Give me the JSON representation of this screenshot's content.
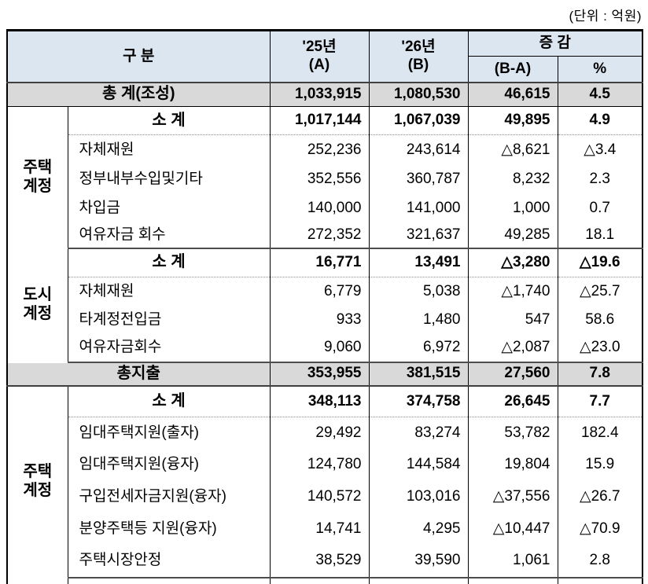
{
  "unit_label": "(단위 : 억원)",
  "colors": {
    "header_bg": "#dce6f1",
    "total_row_bg": "#d9d9d9",
    "border": "#000000",
    "thick_rule": "#404040",
    "dotted_rule": "#8c8c8c"
  },
  "header": {
    "category": "구    분",
    "y25": "'25년\n(A)",
    "y26": "'26년\n(B)",
    "change": "증  감",
    "diff": "(B-A)",
    "pct": "%"
  },
  "groups": [
    {
      "label": "주택\n계정"
    },
    {
      "label": "도시\n계정"
    },
    {
      "label": "주택\n계정"
    }
  ],
  "rows": [
    {
      "label": "총 계(조성)",
      "a": "1,033,915",
      "b": "1,080,530",
      "diff": "46,615",
      "pct": "4.5"
    },
    {
      "label": "소 계",
      "a": "1,017,144",
      "b": "1,067,039",
      "diff": "49,895",
      "pct": "4.9"
    },
    {
      "label": "자체재원",
      "a": "252,236",
      "b": "243,614",
      "diff": "△8,621",
      "pct": "△3.4"
    },
    {
      "label": "정부내부수입및기타",
      "a": "352,556",
      "b": "360,787",
      "diff": "8,232",
      "pct": "2.3"
    },
    {
      "label": "차입금",
      "a": "140,000",
      "b": "141,000",
      "diff": "1,000",
      "pct": "0.7"
    },
    {
      "label": "여유자금 회수",
      "a": "272,352",
      "b": "321,637",
      "diff": "49,285",
      "pct": "18.1"
    },
    {
      "label": "소 계",
      "a": "16,771",
      "b": "13,491",
      "diff": "△3,280",
      "pct": "△19.6"
    },
    {
      "label": "자체재원",
      "a": "6,779",
      "b": "5,038",
      "diff": "△1,740",
      "pct": "△25.7"
    },
    {
      "label": "타계정전입금",
      "a": "933",
      "b": "1,480",
      "diff": "547",
      "pct": "58.6"
    },
    {
      "label": "여유자금회수",
      "a": "9,060",
      "b": "6,972",
      "diff": "△2,087",
      "pct": "△23.0"
    },
    {
      "label": "총지출",
      "a": "353,955",
      "b": "381,515",
      "diff": "27,560",
      "pct": "7.8"
    },
    {
      "label": "소 계",
      "a": "348,113",
      "b": "374,758",
      "diff": "26,645",
      "pct": "7.7"
    },
    {
      "label": "임대주택지원(출자)",
      "a": "29,492",
      "b": "83,274",
      "diff": "53,782",
      "pct": "182.4"
    },
    {
      "label": "임대주택지원(융자)",
      "a": "124,780",
      "b": "144,584",
      "diff": "19,804",
      "pct": "15.9"
    },
    {
      "label": "구입전세자금지원(융자)",
      "a": "140,572",
      "b": "103,016",
      "diff": "△37,556",
      "pct": "△26.7"
    },
    {
      "label": "분양주택등 지원(융자)",
      "a": "14,741",
      "b": "4,295",
      "diff": "△10,447",
      "pct": "△70.9"
    },
    {
      "label": "주택시장안정",
      "a": "38,529",
      "b": "39,590",
      "diff": "1,061",
      "pct": "2.8"
    }
  ]
}
